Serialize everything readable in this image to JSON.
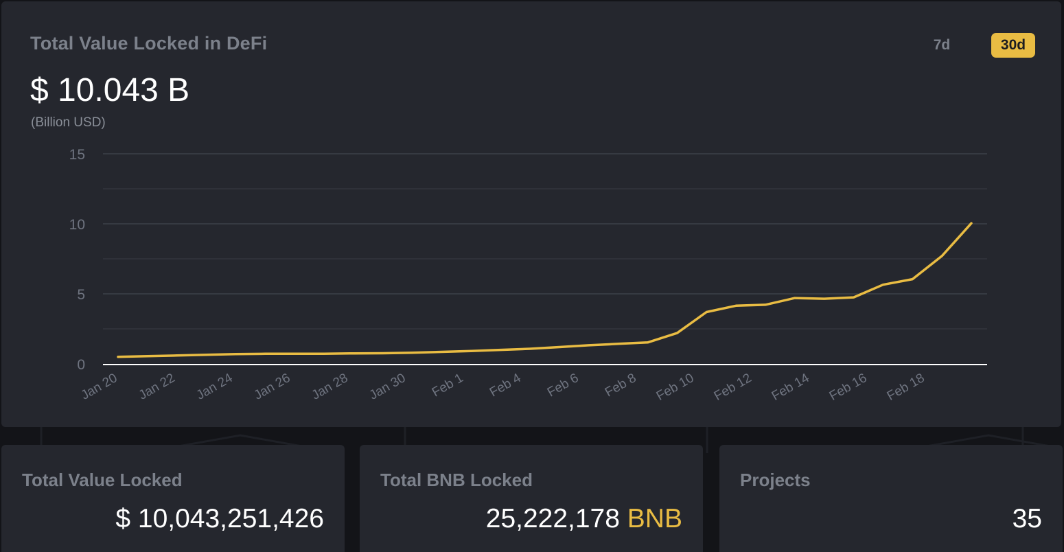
{
  "header": {
    "title": "Total Value Locked in DeFi",
    "value": "$ 10.043 B",
    "unit": "(Billion USD)",
    "ranges": [
      {
        "label": "7d",
        "active": false
      },
      {
        "label": "30d",
        "active": true
      }
    ]
  },
  "chart_data": {
    "type": "line",
    "x": [
      "Jan 20",
      "Jan 21",
      "Jan 22",
      "Jan 23",
      "Jan 24",
      "Jan 25",
      "Jan 26",
      "Jan 27",
      "Jan 28",
      "Jan 29",
      "Jan 30",
      "Jan 31",
      "Feb 1",
      "Feb 2",
      "Feb 4",
      "Feb 5",
      "Feb 6",
      "Feb 7",
      "Feb 8",
      "Feb 9",
      "Feb 10",
      "Feb 11",
      "Feb 12",
      "Feb 13",
      "Feb 14",
      "Feb 15",
      "Feb 16",
      "Feb 17",
      "Feb 18",
      "Feb 19"
    ],
    "tick_labels": [
      "Jan 20",
      "Jan 22",
      "Jan 24",
      "Jan 26",
      "Jan 28",
      "Jan 30",
      "Feb 1",
      "Feb 4",
      "Feb 6",
      "Feb 8",
      "Feb 10",
      "Feb 12",
      "Feb 14",
      "Feb 16",
      "Feb 18"
    ],
    "series": [
      {
        "values": [
          0.5,
          0.55,
          0.6,
          0.65,
          0.7,
          0.72,
          0.72,
          0.72,
          0.75,
          0.76,
          0.8,
          0.86,
          0.92,
          1.0,
          1.08,
          1.2,
          1.33,
          1.43,
          1.53,
          2.2,
          3.7,
          4.15,
          4.22,
          4.7,
          4.65,
          4.75,
          5.65,
          6.05,
          7.7,
          10.04
        ],
        "color": "#e9bc43"
      }
    ],
    "ylim": [
      0,
      15
    ],
    "yticks": [
      0,
      5,
      10,
      15
    ],
    "grid": true,
    "colors": {
      "grid_major": "#3d4049",
      "grid_minor": "#33353d",
      "axis": "#ffffff",
      "tick_text": "#6f7480"
    }
  },
  "stats": [
    {
      "label": "Total Value Locked",
      "value": "$ 10,043,251,426",
      "suffix": ""
    },
    {
      "label": "Total BNB Locked",
      "value": "25,222,178",
      "suffix": "BNB"
    },
    {
      "label": "Projects",
      "value": "35",
      "suffix": ""
    }
  ],
  "colors": {
    "accent": "#e9bc43",
    "card": "#25272e",
    "background": "#131418"
  }
}
